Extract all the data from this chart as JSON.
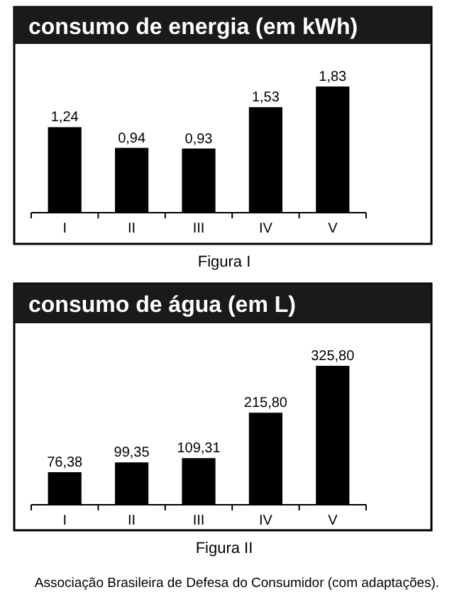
{
  "chart_data": [
    {
      "type": "bar",
      "title": "consumo de energia (em kWh)",
      "categories": [
        "I",
        "II",
        "III",
        "IV",
        "V"
      ],
      "values": [
        1.24,
        0.94,
        0.93,
        1.53,
        1.83
      ],
      "color": "#000000",
      "value_labels": [
        "1,24",
        "0,94",
        "0,93",
        "1,53",
        "1,83"
      ],
      "annotations": [
        "Figura I"
      ]
    },
    {
      "type": "bar",
      "title": "consumo de água (em L)",
      "categories": [
        "I",
        "II",
        "III",
        "IV",
        "V"
      ],
      "values": [
        76.38,
        99.35,
        109.31,
        215.8,
        325.8
      ],
      "color": "#000000",
      "value_labels": [
        "76,38",
        "99,35",
        "109,31",
        "215,80",
        "325,80"
      ],
      "annotations": [
        "Figura II",
        "Associação Brasileira de Defesa do Consumidor (com adaptações)."
      ]
    }
  ]
}
